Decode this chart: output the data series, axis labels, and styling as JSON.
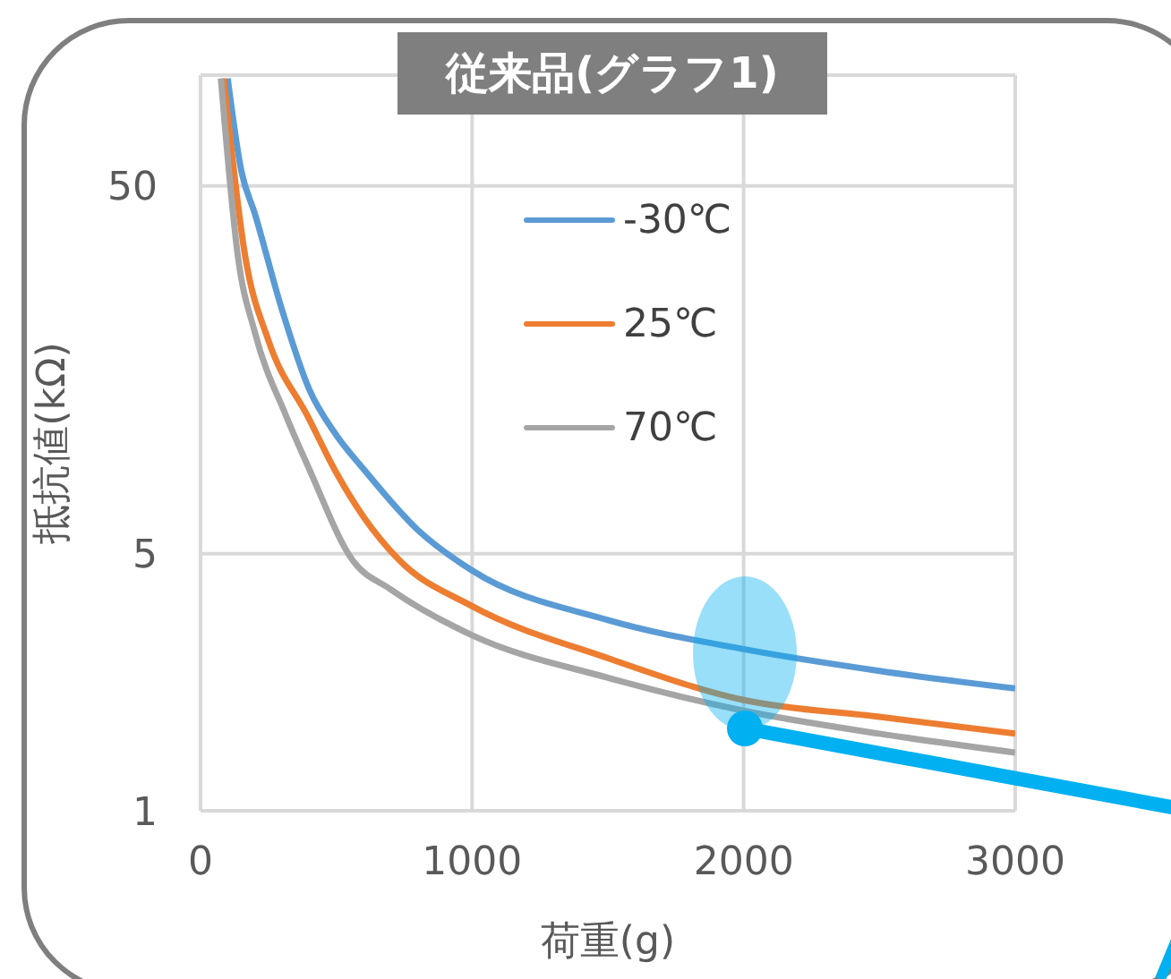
{
  "chart_data": {
    "type": "line",
    "title": "従来品(グラフ1)",
    "xlabel": "荷重(g)",
    "ylabel": "抵抗値(kΩ)",
    "xlim": [
      0,
      3000
    ],
    "xticks": [
      0,
      1000,
      2000,
      3000
    ],
    "ylim": [
      1,
      100
    ],
    "yticks": [
      1,
      5,
      50
    ],
    "log": "y",
    "grid": true,
    "legend": "top",
    "marker": "none",
    "line_style": "solid",
    "series": [
      {
        "name": "-30℃",
        "color": "#5b9bd5",
        "x": [
          100,
          150,
          200,
          300,
          400,
          500,
          600,
          800,
          1000,
          1500,
          2000,
          2500,
          3000
        ],
        "values": [
          98,
          55,
          42,
          23,
          14,
          10.5,
          8.5,
          5.8,
          4.5,
          3.3,
          2.75,
          2.4,
          2.15
        ]
      },
      {
        "name": "25℃",
        "color": "#ed7d31",
        "x": [
          85,
          165,
          250,
          395,
          500,
          600,
          732,
          1000,
          1500,
          2000,
          2500,
          3000
        ],
        "values": [
          98,
          32,
          19,
          11.8,
          8.3,
          6.3,
          4.8,
          3.6,
          2.6,
          2.0,
          1.8,
          1.62
        ]
      },
      {
        "name": "70℃",
        "color": "#a5a5a5",
        "x": [
          75,
          138,
          200,
          316,
          400,
          560,
          700,
          1000,
          1500,
          2000,
          2500,
          3000
        ],
        "values": [
          98,
          32,
          20,
          11.8,
          8.5,
          4.8,
          4,
          3.0,
          2.3,
          1.87,
          1.62,
          1.44
        ]
      }
    ]
  }
}
